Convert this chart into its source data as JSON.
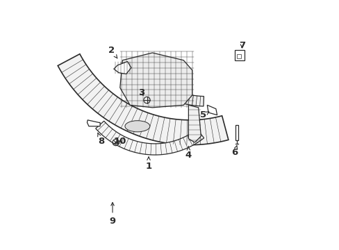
{
  "background_color": "#ffffff",
  "line_color": "#2a2a2a",
  "figsize": [
    4.89,
    3.6
  ],
  "dpi": 100,
  "labels": {
    "1": {
      "lxy": [
        0.415,
        0.335
      ],
      "axy": [
        0.415,
        0.375
      ]
    },
    "2": {
      "lxy": [
        0.265,
        0.8
      ],
      "axy": [
        0.295,
        0.76
      ]
    },
    "3": {
      "lxy": [
        0.385,
        0.63
      ],
      "axy": [
        0.4,
        0.61
      ]
    },
    "4": {
      "lxy": [
        0.575,
        0.38
      ],
      "axy": [
        0.575,
        0.415
      ]
    },
    "5": {
      "lxy": [
        0.635,
        0.54
      ],
      "axy": [
        0.66,
        0.555
      ]
    },
    "6": {
      "lxy": [
        0.76,
        0.39
      ],
      "axy": [
        0.77,
        0.42
      ]
    },
    "7": {
      "lxy": [
        0.79,
        0.82
      ],
      "axy": [
        0.79,
        0.8
      ]
    },
    "8": {
      "lxy": [
        0.225,
        0.435
      ],
      "axy": [
        0.21,
        0.47
      ]
    },
    "9": {
      "lxy": [
        0.27,
        0.115
      ],
      "axy": [
        0.27,
        0.2
      ]
    },
    "10": {
      "lxy": [
        0.3,
        0.435
      ],
      "axy": [
        0.285,
        0.43
      ]
    }
  }
}
